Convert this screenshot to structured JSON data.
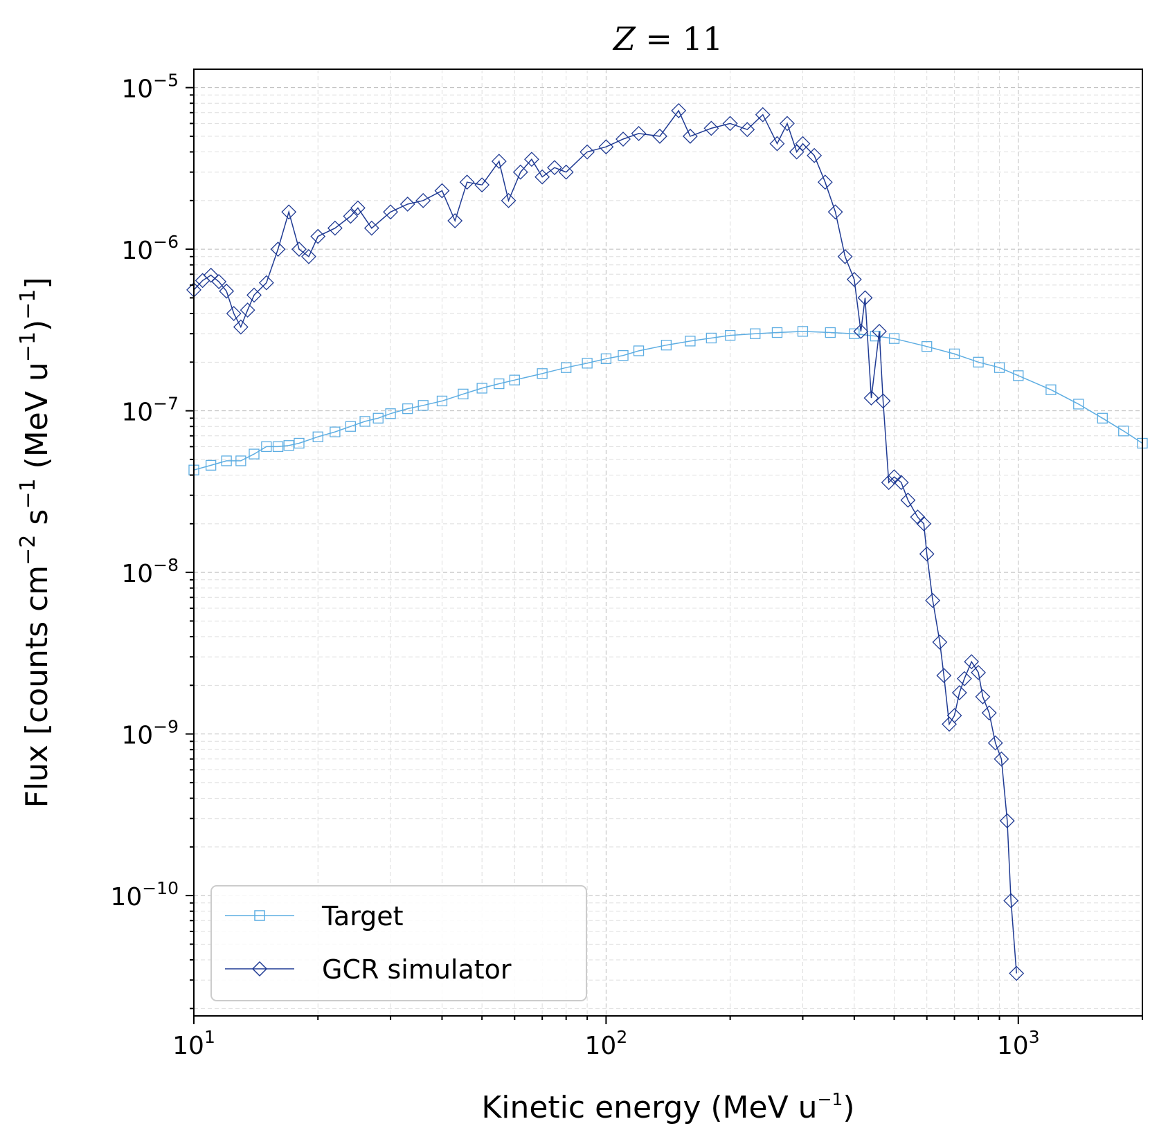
{
  "chart_data": {
    "type": "line",
    "title": "Z = 11",
    "title_var": "Z",
    "title_rest": " = 11",
    "xlabel": "Kinetic energy (MeV u",
    "xlabel_sup": "−1",
    "xlabel_end": ")",
    "ylabel_parts": [
      "Flux [counts cm",
      "−2",
      " s",
      "−1",
      " (MeV u",
      "−1",
      ")",
      "−1",
      "]"
    ],
    "xscale": "log",
    "yscale": "log",
    "xlim": [
      10,
      2000
    ],
    "ylim": [
      1.8e-11,
      1.3e-05
    ],
    "grid": true,
    "legend_position": "lower-left",
    "x_ticks": [
      {
        "base": "10",
        "exp": "1",
        "value": 10
      },
      {
        "base": "10",
        "exp": "2",
        "value": 100
      },
      {
        "base": "10",
        "exp": "3",
        "value": 1000
      }
    ],
    "y_ticks": [
      {
        "base": "10",
        "exp": "−5",
        "value": 1e-05
      },
      {
        "base": "10",
        "exp": "−6",
        "value": 1e-06
      },
      {
        "base": "10",
        "exp": "−7",
        "value": 1e-07
      },
      {
        "base": "10",
        "exp": "−8",
        "value": 1e-08
      },
      {
        "base": "10",
        "exp": "−9",
        "value": 1e-09
      },
      {
        "base": "10",
        "exp": "−10",
        "value": 1e-10
      }
    ],
    "series": [
      {
        "name": "Target",
        "color": "#5DADE2",
        "marker": "square",
        "points": [
          [
            10.0,
            4.3e-08
          ],
          [
            11.0,
            4.6e-08
          ],
          [
            12.0,
            4.9e-08
          ],
          [
            13.0,
            4.9e-08
          ],
          [
            14.0,
            5.4e-08
          ],
          [
            15.0,
            6e-08
          ],
          [
            16.0,
            6e-08
          ],
          [
            17.0,
            6.1e-08
          ],
          [
            18.0,
            6.3e-08
          ],
          [
            20.0,
            6.9e-08
          ],
          [
            22.0,
            7.4e-08
          ],
          [
            24.0,
            8e-08
          ],
          [
            26.0,
            8.6e-08
          ],
          [
            28.0,
            9e-08
          ],
          [
            30.0,
            9.6e-08
          ],
          [
            33.0,
            1.03e-07
          ],
          [
            36.0,
            1.08e-07
          ],
          [
            40.0,
            1.15e-07
          ],
          [
            45.0,
            1.27e-07
          ],
          [
            50.0,
            1.38e-07
          ],
          [
            55.0,
            1.47e-07
          ],
          [
            60.0,
            1.55e-07
          ],
          [
            70.0,
            1.7e-07
          ],
          [
            80.0,
            1.85e-07
          ],
          [
            90.0,
            1.97e-07
          ],
          [
            100.0,
            2.1e-07
          ],
          [
            110.0,
            2.2e-07
          ],
          [
            120.0,
            2.35e-07
          ],
          [
            140.0,
            2.55e-07
          ],
          [
            160.0,
            2.7e-07
          ],
          [
            180.0,
            2.82e-07
          ],
          [
            200.0,
            2.93e-07
          ],
          [
            230.0,
            3e-07
          ],
          [
            260.0,
            3.05e-07
          ],
          [
            300.0,
            3.1e-07
          ],
          [
            350.0,
            3.05e-07
          ],
          [
            400.0,
            3e-07
          ],
          [
            450.0,
            2.9e-07
          ],
          [
            500.0,
            2.8e-07
          ],
          [
            600.0,
            2.5e-07
          ],
          [
            700.0,
            2.25e-07
          ],
          [
            800.0,
            2e-07
          ],
          [
            900.0,
            1.85e-07
          ],
          [
            1000.0,
            1.65e-07
          ],
          [
            1200.0,
            1.35e-07
          ],
          [
            1400.0,
            1.1e-07
          ],
          [
            1600.0,
            9e-08
          ],
          [
            1800.0,
            7.5e-08
          ],
          [
            2000.0,
            6.3e-08
          ]
        ]
      },
      {
        "name": "GCR simulator",
        "color": "#1F3A93",
        "marker": "diamond",
        "points": [
          [
            10.0,
            5.6e-07
          ],
          [
            10.5,
            6.4e-07
          ],
          [
            11.0,
            6.9e-07
          ],
          [
            11.5,
            6.3e-07
          ],
          [
            12.0,
            5.5e-07
          ],
          [
            12.5,
            4e-07
          ],
          [
            13.0,
            3.3e-07
          ],
          [
            13.5,
            4.2e-07
          ],
          [
            14.0,
            5.2e-07
          ],
          [
            15.0,
            6.2e-07
          ],
          [
            16.0,
            1e-06
          ],
          [
            17.0,
            1.7e-06
          ],
          [
            18.0,
            1e-06
          ],
          [
            19.0,
            9e-07
          ],
          [
            20.0,
            1.2e-06
          ],
          [
            22.0,
            1.35e-06
          ],
          [
            24.0,
            1.6e-06
          ],
          [
            25.0,
            1.8e-06
          ],
          [
            27.0,
            1.35e-06
          ],
          [
            30.0,
            1.7e-06
          ],
          [
            33.0,
            1.9e-06
          ],
          [
            36.0,
            2e-06
          ],
          [
            40.0,
            2.3e-06
          ],
          [
            43.0,
            1.5e-06
          ],
          [
            46.0,
            2.6e-06
          ],
          [
            50.0,
            2.5e-06
          ],
          [
            55.0,
            3.5e-06
          ],
          [
            58.0,
            2e-06
          ],
          [
            62.0,
            3e-06
          ],
          [
            66.0,
            3.6e-06
          ],
          [
            70.0,
            2.8e-06
          ],
          [
            75.0,
            3.2e-06
          ],
          [
            80.0,
            3e-06
          ],
          [
            90.0,
            4e-06
          ],
          [
            100.0,
            4.3e-06
          ],
          [
            110.0,
            4.8e-06
          ],
          [
            120.0,
            5.2e-06
          ],
          [
            135.0,
            5e-06
          ],
          [
            150.0,
            7.2e-06
          ],
          [
            160.0,
            5e-06
          ],
          [
            180.0,
            5.6e-06
          ],
          [
            200.0,
            6e-06
          ],
          [
            220.0,
            5.5e-06
          ],
          [
            240.0,
            6.8e-06
          ],
          [
            260.0,
            4.5e-06
          ],
          [
            275.0,
            6e-06
          ],
          [
            290.0,
            4e-06
          ],
          [
            300.0,
            4.5e-06
          ],
          [
            320.0,
            3.8e-06
          ],
          [
            340.0,
            2.6e-06
          ],
          [
            360.0,
            1.7e-06
          ],
          [
            380.0,
            9e-07
          ],
          [
            400.0,
            6.5e-07
          ],
          [
            415.0,
            3.1e-07
          ],
          [
            425.0,
            5e-07
          ],
          [
            440.0,
            1.2e-07
          ],
          [
            460.0,
            3.1e-07
          ],
          [
            470.0,
            1.15e-07
          ],
          [
            485.0,
            3.6e-08
          ],
          [
            500.0,
            3.9e-08
          ],
          [
            520.0,
            3.6e-08
          ],
          [
            540.0,
            2.8e-08
          ],
          [
            570.0,
            2.2e-08
          ],
          [
            590.0,
            2e-08
          ],
          [
            600.0,
            1.3e-08
          ],
          [
            620.0,
            6.7e-09
          ],
          [
            645.0,
            3.7e-09
          ],
          [
            660.0,
            2.3e-09
          ],
          [
            680.0,
            1.15e-09
          ],
          [
            700.0,
            1.3e-09
          ],
          [
            720.0,
            1.8e-09
          ],
          [
            740.0,
            2.2e-09
          ],
          [
            770.0,
            2.8e-09
          ],
          [
            800.0,
            2.4e-09
          ],
          [
            820.0,
            1.7e-09
          ],
          [
            850.0,
            1.35e-09
          ],
          [
            880.0,
            8.8e-10
          ],
          [
            910.0,
            7e-10
          ],
          [
            940.0,
            2.9e-10
          ],
          [
            960.0,
            9.3e-11
          ],
          [
            990.0,
            3.3e-11
          ]
        ]
      }
    ]
  }
}
